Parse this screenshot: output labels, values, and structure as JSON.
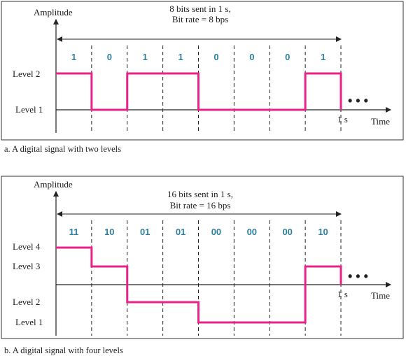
{
  "panel_a": {
    "y_axis_label": "Amplitude",
    "x_axis_label": "Time",
    "header_line1": "8 bits sent in 1 s,",
    "header_line2": "Bit rate = 8 bps",
    "levels": [
      "Level 2",
      "Level 1"
    ],
    "bits": [
      "1",
      "0",
      "1",
      "1",
      "0",
      "0",
      "0",
      "1"
    ],
    "signal_levels": [
      2,
      1,
      2,
      2,
      1,
      1,
      1,
      2
    ],
    "end_tick": "1 s",
    "ellipsis": "• • •",
    "caption": "a. A digital signal with two levels",
    "signal_color": "#e8228a"
  },
  "panel_b": {
    "y_axis_label": "Amplitude",
    "x_axis_label": "Time",
    "header_line1": "16 bits sent in 1 s,",
    "header_line2": "Bit rate = 16 bps",
    "levels": [
      "Level 4",
      "Level 3",
      "Level 2",
      "Level 1"
    ],
    "bits": [
      "11",
      "10",
      "01",
      "01",
      "00",
      "00",
      "00",
      "10"
    ],
    "signal_levels": [
      4,
      3,
      2,
      2,
      1,
      1,
      1,
      3
    ],
    "end_tick": "1 s",
    "ellipsis": "• • •",
    "caption": "b. A digital signal with four levels",
    "signal_color": "#e8228a"
  }
}
